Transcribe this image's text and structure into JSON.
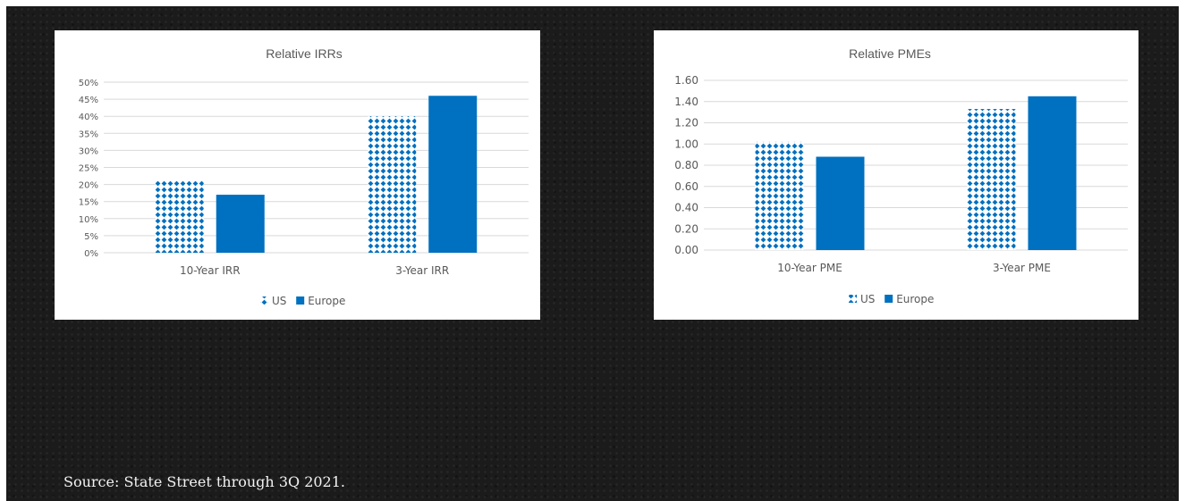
{
  "chart_data": [
    {
      "type": "bar",
      "title": "Relative IRRs",
      "categories": [
        "10-Year IRR",
        "3-Year IRR"
      ],
      "series": [
        {
          "name": "US",
          "values": [
            0.21,
            0.4
          ],
          "pattern": "dots",
          "color": "#0070c0"
        },
        {
          "name": "Europe",
          "values": [
            0.17,
            0.46
          ],
          "pattern": "solid",
          "color": "#0070c0"
        }
      ],
      "ylim": [
        0,
        0.5
      ],
      "ytick_step": 0.05,
      "yticks": [
        "0%",
        "5%",
        "10%",
        "15%",
        "20%",
        "25%",
        "30%",
        "35%",
        "40%",
        "45%",
        "50%"
      ],
      "grid": true,
      "legend_position": "bottom"
    },
    {
      "type": "bar",
      "title": "Relative PMEs",
      "categories": [
        "10-Year PME",
        "3-Year PME"
      ],
      "series": [
        {
          "name": "US",
          "values": [
            1.02,
            1.33
          ],
          "pattern": "dots",
          "color": "#0070c0"
        },
        {
          "name": "Europe",
          "values": [
            0.88,
            1.45
          ],
          "pattern": "solid",
          "color": "#0070c0"
        }
      ],
      "ylim": [
        0,
        1.6
      ],
      "ytick_step": 0.2,
      "yticks": [
        "0.00",
        "0.20",
        "0.40",
        "0.60",
        "0.80",
        "1.00",
        "1.20",
        "1.40",
        "1.60"
      ],
      "grid": true,
      "legend_position": "bottom"
    }
  ],
  "source_note": "Source: State Street through 3Q 2021."
}
